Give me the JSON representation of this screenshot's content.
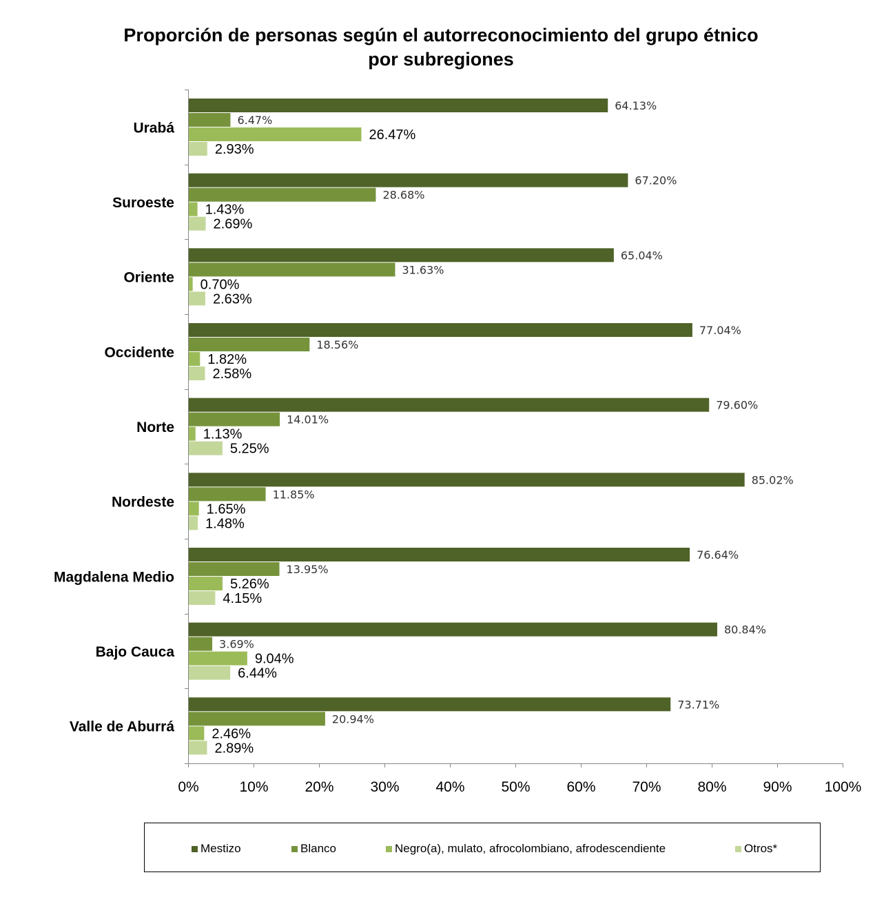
{
  "chart_data": {
    "type": "bar",
    "orientation": "horizontal",
    "title": [
      "Proporción de personas según el autorreconocimiento del grupo étnico",
      "por subregiones"
    ],
    "categories": [
      "Urabá",
      "Suroeste",
      "Oriente",
      "Occidente",
      "Norte",
      "Nordeste",
      "Magdalena Medio",
      "Bajo Cauca",
      "Valle de Aburrá"
    ],
    "series": [
      {
        "name": "Mestizo",
        "color": "#4f6228",
        "values": [
          64.13,
          67.2,
          65.04,
          77.04,
          79.6,
          85.02,
          76.64,
          80.84,
          73.71
        ],
        "labels": [
          "64.13%",
          "67.20%",
          "65.04%",
          "77.04%",
          "79.60%",
          "85.02%",
          "76.64%",
          "80.84%",
          "73.71%"
        ]
      },
      {
        "name": "Blanco",
        "color": "#76933c",
        "values": [
          6.47,
          28.68,
          31.63,
          18.56,
          14.01,
          11.85,
          13.95,
          3.69,
          20.94
        ],
        "labels": [
          "6.47%",
          "28.68%",
          "31.63%",
          "18.56%",
          "14.01%",
          "11.85%",
          "13.95%",
          "3.69%",
          "20.94%"
        ]
      },
      {
        "name": "Negro(a), mulato, afrocolombiano, afrodescendiente",
        "color": "#9bbb59",
        "values": [
          26.47,
          1.43,
          0.7,
          1.82,
          1.13,
          1.65,
          5.26,
          9.04,
          2.46
        ],
        "labels": [
          "26.47%",
          "1.43%",
          "0.70%",
          "1.82%",
          "1.13%",
          "1.65%",
          "5.26%",
          "9.04%",
          "2.46%"
        ]
      },
      {
        "name": "Otros*",
        "color": "#c4d79b",
        "values": [
          2.93,
          2.69,
          2.63,
          2.58,
          5.25,
          1.48,
          4.15,
          6.44,
          2.89
        ],
        "labels": [
          "2.93%",
          "2.69%",
          "2.63%",
          "2.58%",
          "5.25%",
          "1.48%",
          "4.15%",
          "6.44%",
          "2.89%"
        ]
      }
    ],
    "xlim": [
      0,
      100
    ],
    "x_ticks": [
      "0%",
      "10%",
      "20%",
      "30%",
      "40%",
      "50%",
      "60%",
      "70%",
      "80%",
      "90%",
      "100%"
    ],
    "grid": false,
    "legend": {
      "position": "bottom",
      "boxed": true
    }
  }
}
